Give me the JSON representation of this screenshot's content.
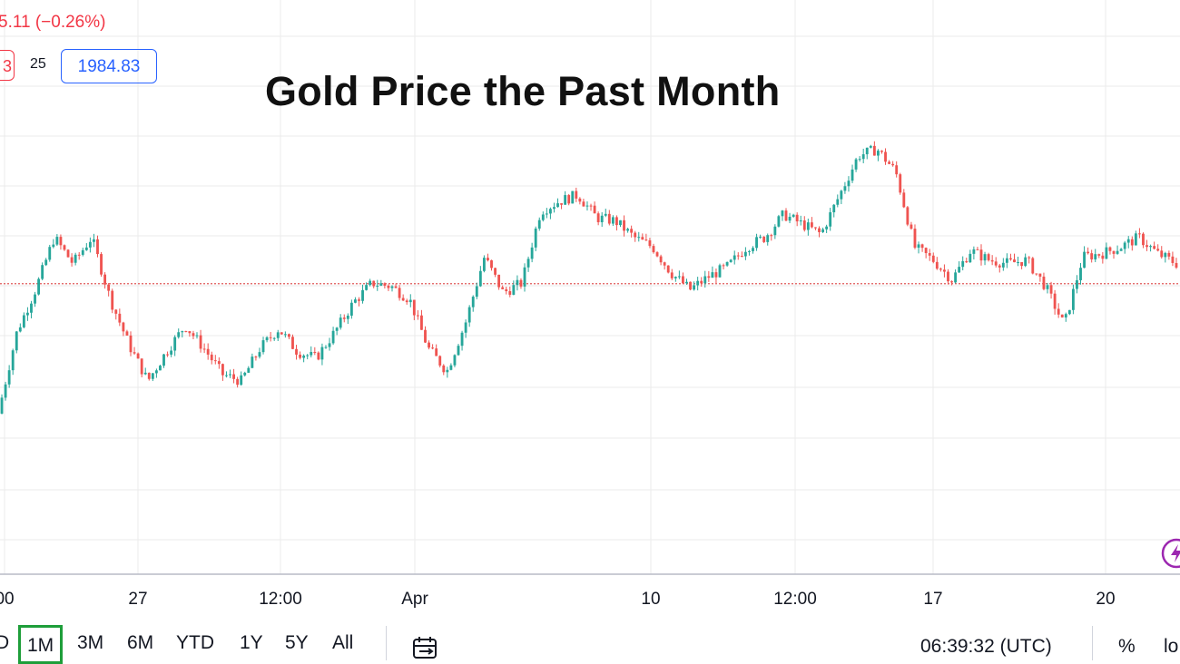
{
  "header": {
    "change_text": "5.11 (−0.26%)",
    "sell_price": "3",
    "spread": "25",
    "buy_price": "1984.83",
    "title": "Gold Price the Past Month"
  },
  "toolbar": {
    "timeframes": [
      "D",
      "1M",
      "3M",
      "6M",
      "YTD",
      "1Y",
      "5Y",
      "All"
    ],
    "active_timeframe": "1M",
    "clock": "06:39:32 (UTC)",
    "percent_label": "%",
    "log_label": "lo"
  },
  "icons": {
    "calendar": "calendar-range-icon",
    "bolt": "lightning-icon"
  },
  "colors": {
    "up": "#26a69a",
    "down": "#ef5350",
    "grid": "#ebebeb",
    "current_price_line": "#e05a5a",
    "active_timeframe_border": "#1e9e3a"
  },
  "chart_data": {
    "type": "line",
    "style": "candlestick",
    "title": "Gold Price the Past Month",
    "x_ticks": [
      "00",
      "27",
      "12:00",
      "Apr",
      "10",
      "12:00",
      "17",
      "20"
    ],
    "current_price_line_level": 0.548,
    "grid": true,
    "y_axis": "hidden",
    "series": [
      {
        "values": [
          0.15,
          0.4,
          0.53,
          0.69,
          0.61,
          0.69,
          0.5,
          0.36,
          0.25,
          0.34,
          0.42,
          0.35,
          0.27,
          0.25,
          0.35,
          0.41,
          0.34,
          0.32,
          0.4,
          0.49,
          0.55,
          0.54,
          0.5,
          0.35,
          0.28,
          0.43,
          0.63,
          0.52,
          0.55,
          0.77,
          0.8,
          0.82,
          0.75,
          0.74,
          0.69,
          0.66,
          0.58,
          0.53,
          0.57,
          0.6,
          0.66,
          0.69,
          0.76,
          0.73,
          0.7,
          0.82,
          0.94,
          0.96,
          0.89,
          0.66,
          0.62,
          0.56,
          0.65,
          0.62,
          0.61,
          0.62,
          0.54,
          0.42,
          0.63,
          0.64,
          0.66,
          0.69,
          0.64,
          0.61
        ]
      }
    ]
  }
}
